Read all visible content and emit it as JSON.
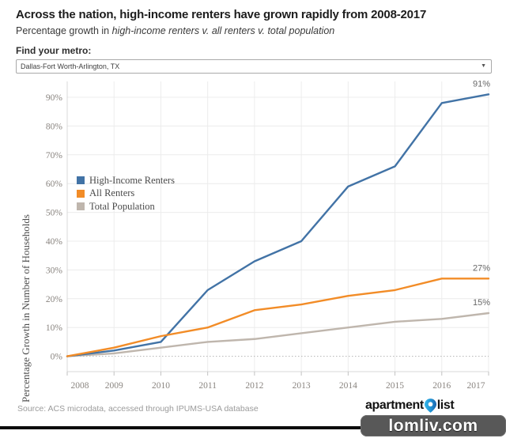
{
  "header": {
    "title": "Across the nation, high-income renters have grown rapidly from 2008-2017",
    "subtitle_prefix": "Percentage growth in ",
    "subtitle_emphasis": "high-income renters v. all renters v. total population"
  },
  "metro_finder": {
    "label": "Find your metro:",
    "selected_value": "Dallas-Fort Worth-Arlington, TX",
    "caret": "▼"
  },
  "chart_data": {
    "type": "line",
    "x": [
      2008,
      2009,
      2010,
      2011,
      2012,
      2013,
      2014,
      2015,
      2016,
      2017
    ],
    "series": [
      {
        "name": "High-Income Renters",
        "color": "#4273A6",
        "values": [
          0,
          2,
          5,
          23,
          33,
          40,
          59,
          66,
          88,
          91
        ],
        "end_label": "91%"
      },
      {
        "name": "All Renters",
        "color": "#F28C27",
        "values": [
          0,
          3,
          7,
          10,
          16,
          18,
          21,
          23,
          27,
          27
        ],
        "end_label": "27%"
      },
      {
        "name": "Total Population",
        "color": "#BFB6AD",
        "values": [
          0,
          1,
          3,
          5,
          6,
          8,
          10,
          12,
          13,
          15
        ],
        "end_label": "15%"
      }
    ],
    "ylabel": "Percentage Growth in Number of Households",
    "xlabel": "",
    "y_ticks": [
      "0%",
      "10%",
      "20%",
      "30%",
      "40%",
      "50%",
      "60%",
      "70%",
      "80%",
      "90%"
    ],
    "ylim": [
      0,
      96
    ],
    "grid": true,
    "zero_line": "dotted",
    "legend_position": "top-left"
  },
  "footer": {
    "source": "Source: ACS microdata, accessed through IPUMS-USA database",
    "logo_part1": "apartment",
    "logo_part2": "list"
  },
  "watermark": {
    "text": "lomliv.com"
  }
}
